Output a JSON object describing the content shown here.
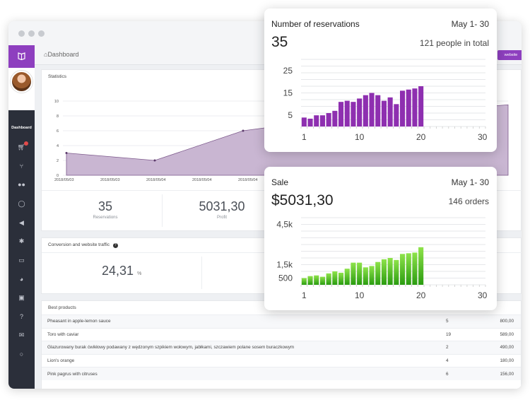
{
  "breadcrumb": "Dashboard",
  "header_button": "website",
  "sidebar": {
    "active_label": "Dashboard",
    "icons": [
      "cart-icon",
      "cutlery-icon",
      "users-icon",
      "comment-icon",
      "megaphone-icon",
      "gear-icon",
      "monitor-icon",
      "pie-chart-icon",
      "cash-icon",
      "question-icon",
      "envelope-icon",
      "power-icon"
    ]
  },
  "statistics": {
    "title": "Statistics",
    "reservations_value": "35",
    "reservations_label": "Reservations",
    "profit_value": "5031,30",
    "profit_label": "Profit",
    "chart": {
      "y_ticks": [
        "10",
        "8",
        "6",
        "4",
        "2",
        "0"
      ],
      "x_ticks": [
        "2018/05/03",
        "2018/05/03",
        "2018/05/04",
        "2018/05/04",
        "2018/05/04",
        "2018/05/05"
      ]
    }
  },
  "conversion": {
    "title": "Conversion and website traffic",
    "value": "24,31",
    "unit": "%"
  },
  "products": {
    "title": "Best products",
    "rows": [
      {
        "name": "Pheasant in apple-lemon sauce",
        "qty": "5",
        "value": "800,00"
      },
      {
        "name": "Toro with caviar",
        "qty": "19",
        "value": "589,00"
      },
      {
        "name": "Glazurowany burak ćwikłowy podawany z wędzonym szpikiem wołowym, jabłkami, szczawiem polane sosem buraczkowym",
        "qty": "2",
        "value": "490,00"
      },
      {
        "name": "Lion's orange",
        "qty": "4",
        "value": "180,00"
      },
      {
        "name": "Pink pagrus with citruses",
        "qty": "6",
        "value": "156,00"
      }
    ]
  },
  "reservations_card": {
    "title": "Number of reservations",
    "date_range": "May 1- 30",
    "big_value": "35",
    "subtitle": "121 people in total"
  },
  "sale_card": {
    "title": "Sale",
    "date_range": "May 1- 30",
    "big_value": "$5031,30",
    "subtitle": "146 orders"
  },
  "chart_data": [
    {
      "type": "area",
      "x": [
        "2018/05/03",
        "2018/05/04",
        "2018/05/04",
        "2018/05/05"
      ],
      "values": [
        3,
        2,
        6,
        7.5
      ],
      "ylim": [
        0,
        10
      ],
      "y_ticks": [
        0,
        2,
        4,
        6,
        8,
        10
      ],
      "color": "#c6b3cf"
    },
    {
      "type": "bar",
      "x": [
        1,
        2,
        3,
        4,
        5,
        6,
        7,
        8,
        9,
        10,
        11,
        12,
        13,
        14,
        15,
        16,
        17,
        18,
        19,
        20
      ],
      "values": [
        4,
        3.5,
        5,
        5,
        6,
        7,
        11,
        11.5,
        11,
        12.5,
        14,
        15,
        14,
        11.5,
        13,
        10,
        16,
        16.5,
        17,
        18
      ],
      "ylim": [
        0,
        30
      ],
      "y_ticks": [
        5,
        15,
        25
      ],
      "x_ticks": [
        1,
        10,
        20,
        30
      ],
      "color": "#8e2fb0"
    },
    {
      "type": "bar",
      "x": [
        1,
        2,
        3,
        4,
        5,
        6,
        7,
        8,
        9,
        10,
        11,
        12,
        13,
        14,
        15,
        16,
        17,
        18,
        19,
        20
      ],
      "values": [
        500,
        650,
        700,
        600,
        850,
        1000,
        900,
        1200,
        1650,
        1650,
        1300,
        1400,
        1700,
        1900,
        2000,
        1850,
        2300,
        2350,
        2400,
        2800
      ],
      "ylim": [
        0,
        5000
      ],
      "y_ticks": [
        500,
        1500,
        4500
      ],
      "y_tick_labels": [
        "500",
        "1,5k",
        "4,5k"
      ],
      "x_ticks": [
        1,
        10,
        20,
        30
      ],
      "color": "#3fbf1f"
    }
  ]
}
